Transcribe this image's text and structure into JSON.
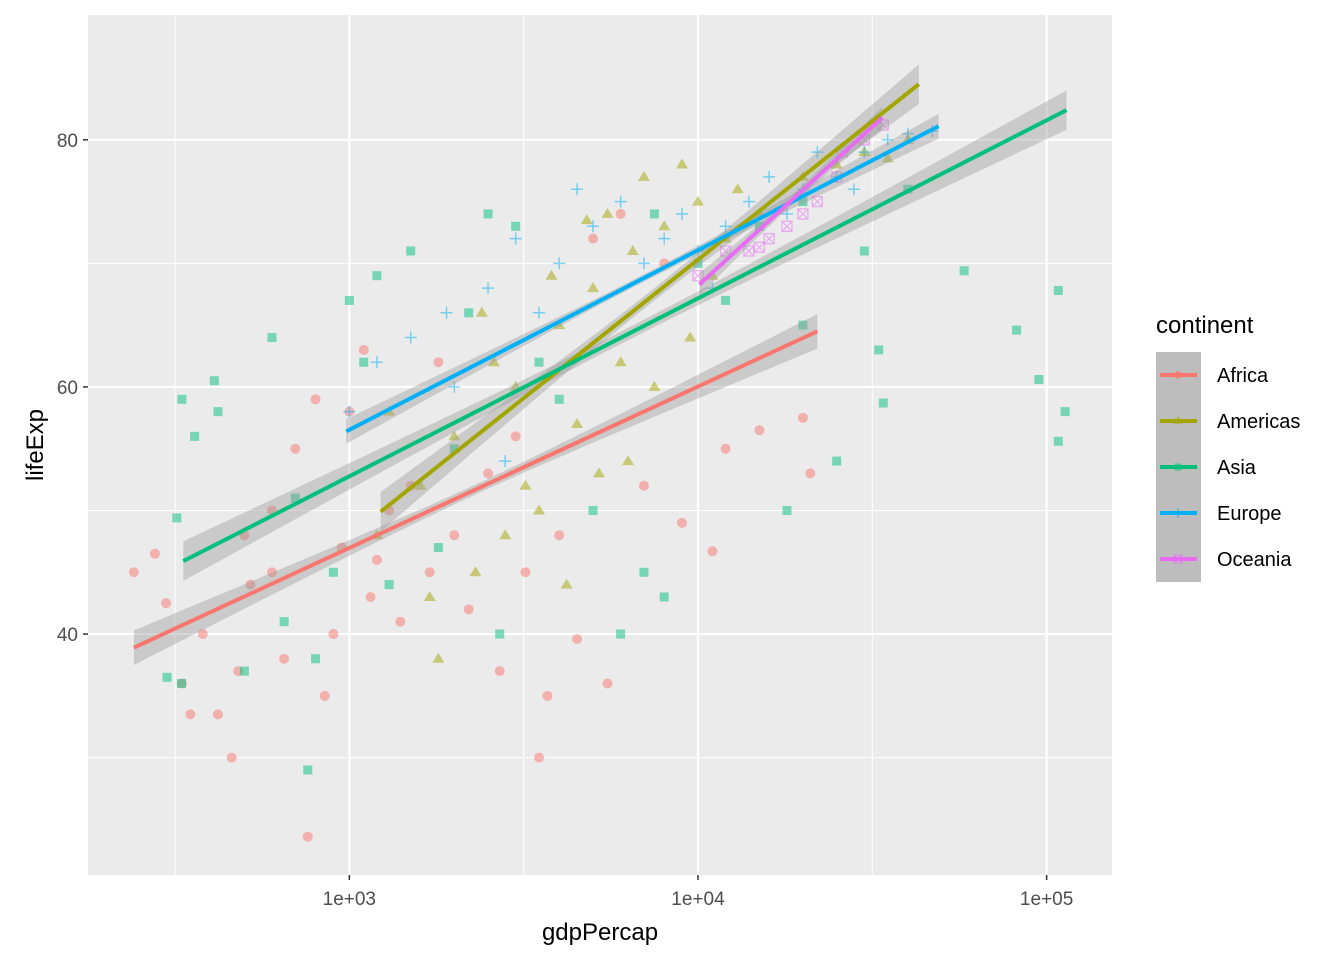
{
  "chart_data": {
    "type": "scatter",
    "xlabel": "gdpPercap",
    "ylabel": "lifeExp",
    "x_scale": "log10",
    "xlim": [
      178,
      154000
    ],
    "ylim": [
      20.5,
      90.1
    ],
    "x_ticks": [
      {
        "value": 1000,
        "label": "1e+03"
      },
      {
        "value": 10000,
        "label": "1e+04"
      },
      {
        "value": 100000,
        "label": "1e+05"
      }
    ],
    "y_ticks": [
      {
        "value": 40,
        "label": "40"
      },
      {
        "value": 60,
        "label": "60"
      },
      {
        "value": 80,
        "label": "80"
      }
    ],
    "x_minor": [
      316.2,
      3162,
      31623
    ],
    "y_minor": [
      30,
      50,
      70
    ],
    "grid": true,
    "legend": {
      "title": "continent",
      "placement": "right"
    },
    "series": [
      {
        "name": "Africa",
        "color": "#F8766D",
        "shape": "circle",
        "fit": {
          "from": [
            241,
            38.9
          ],
          "to": [
            22000,
            64.5
          ],
          "ci_halfwidth_ends": 1.4,
          "ci_halfwidth_mid": 0.4
        },
        "points": [
          [
            241,
            45
          ],
          [
            277,
            46.5
          ],
          [
            298,
            42.5
          ],
          [
            331,
            36
          ],
          [
            350,
            33.5
          ],
          [
            420,
            33.5
          ],
          [
            460,
            30
          ],
          [
            480,
            37
          ],
          [
            520,
            44
          ],
          [
            600,
            50
          ],
          [
            700,
            55
          ],
          [
            800,
            59
          ],
          [
            760,
            23.6
          ],
          [
            900,
            40
          ],
          [
            1000,
            58
          ],
          [
            1100,
            63
          ],
          [
            1200,
            46
          ],
          [
            1300,
            50
          ],
          [
            1500,
            52
          ],
          [
            1700,
            45
          ],
          [
            2000,
            48
          ],
          [
            2500,
            53
          ],
          [
            3000,
            56
          ],
          [
            3500,
            30
          ],
          [
            4000,
            48
          ],
          [
            5000,
            72
          ],
          [
            6000,
            74
          ],
          [
            7000,
            52
          ],
          [
            4500,
            39.6
          ],
          [
            5500,
            36
          ],
          [
            8000,
            70
          ],
          [
            9000,
            49
          ],
          [
            12000,
            55
          ],
          [
            15000,
            56.5
          ],
          [
            20000,
            57.5
          ],
          [
            21000,
            53
          ],
          [
            11000,
            46.7
          ],
          [
            3700,
            35
          ],
          [
            2700,
            37
          ],
          [
            1800,
            62
          ],
          [
            1400,
            41
          ],
          [
            850,
            35
          ],
          [
            600,
            45
          ],
          [
            500,
            48
          ],
          [
            380,
            40
          ],
          [
            650,
            38
          ],
          [
            950,
            47
          ],
          [
            1150,
            43
          ],
          [
            2200,
            42
          ],
          [
            3200,
            45
          ]
        ]
      },
      {
        "name": "Americas",
        "color": "#A3A500",
        "shape": "triangle",
        "fit": {
          "from": [
            1230,
            49.9
          ],
          "to": [
            43000,
            84.5
          ],
          "ci_halfwidth_ends": 1.6,
          "ci_halfwidth_mid": 0.5
        },
        "points": [
          [
            1200,
            48
          ],
          [
            1300,
            58
          ],
          [
            1600,
            52
          ],
          [
            1800,
            38
          ],
          [
            2000,
            56
          ],
          [
            2300,
            45
          ],
          [
            2600,
            62
          ],
          [
            3000,
            60
          ],
          [
            3500,
            50
          ],
          [
            4000,
            65
          ],
          [
            4500,
            57
          ],
          [
            5000,
            68
          ],
          [
            5500,
            74
          ],
          [
            6000,
            62
          ],
          [
            6500,
            71
          ],
          [
            7000,
            77
          ],
          [
            8000,
            73
          ],
          [
            9000,
            78
          ],
          [
            10000,
            75
          ],
          [
            12000,
            72
          ],
          [
            15000,
            74
          ],
          [
            20000,
            77
          ],
          [
            25000,
            78
          ],
          [
            30000,
            79
          ],
          [
            35000,
            78.5
          ],
          [
            40000,
            80
          ],
          [
            3200,
            52
          ],
          [
            2800,
            48
          ],
          [
            4200,
            44
          ],
          [
            5200,
            53
          ],
          [
            6300,
            54
          ],
          [
            7500,
            60
          ],
          [
            9500,
            64
          ],
          [
            11000,
            69
          ],
          [
            13000,
            76
          ],
          [
            1700,
            43
          ],
          [
            2400,
            66
          ],
          [
            3800,
            69
          ],
          [
            4800,
            73.5
          ]
        ]
      },
      {
        "name": "Asia",
        "color": "#00BF7D",
        "shape": "square",
        "fit": {
          "from": [
            334,
            45.9
          ],
          "to": [
            114000,
            82.4
          ],
          "ci_halfwidth_ends": 1.6,
          "ci_halfwidth_mid": 0.5
        },
        "points": [
          [
            330,
            36
          ],
          [
            331,
            59
          ],
          [
            360,
            56
          ],
          [
            410,
            60.5
          ],
          [
            420,
            58
          ],
          [
            500,
            37
          ],
          [
            600,
            64
          ],
          [
            700,
            51
          ],
          [
            760,
            29
          ],
          [
            800,
            38
          ],
          [
            900,
            45
          ],
          [
            1000,
            67
          ],
          [
            1100,
            62
          ],
          [
            1200,
            69
          ],
          [
            1500,
            71
          ],
          [
            2000,
            55
          ],
          [
            2500,
            74
          ],
          [
            3000,
            73
          ],
          [
            3500,
            62
          ],
          [
            4000,
            59
          ],
          [
            5000,
            50
          ],
          [
            6000,
            40
          ],
          [
            7000,
            45
          ],
          [
            8000,
            43
          ],
          [
            10000,
            70
          ],
          [
            12000,
            67
          ],
          [
            18000,
            50
          ],
          [
            20000,
            65
          ],
          [
            25000,
            54
          ],
          [
            30000,
            71
          ],
          [
            33000,
            63
          ],
          [
            34000,
            58.7
          ],
          [
            40000,
            76
          ],
          [
            58000,
            69.4
          ],
          [
            82000,
            64.6
          ],
          [
            95000,
            60.6
          ],
          [
            108000,
            67.8
          ],
          [
            113000,
            58
          ],
          [
            108000,
            55.6
          ],
          [
            20000,
            75
          ],
          [
            15000,
            73
          ],
          [
            7500,
            74
          ],
          [
            1800,
            47
          ],
          [
            1300,
            44
          ],
          [
            2200,
            66
          ],
          [
            650,
            41
          ],
          [
            2700,
            40
          ],
          [
            320,
            49.4
          ],
          [
            300,
            36.5
          ]
        ]
      },
      {
        "name": "Europe",
        "color": "#00B0F6",
        "shape": "plus",
        "fit": {
          "from": [
            980,
            56.4
          ],
          "to": [
            49000,
            81.1
          ],
          "ci_halfwidth_ends": 1.0,
          "ci_halfwidth_mid": 0.3
        },
        "points": [
          [
            1000,
            58
          ],
          [
            1200,
            62
          ],
          [
            1500,
            64
          ],
          [
            2000,
            60
          ],
          [
            2500,
            68
          ],
          [
            3000,
            72
          ],
          [
            3500,
            66
          ],
          [
            4000,
            70
          ],
          [
            4500,
            76
          ],
          [
            5000,
            73
          ],
          [
            6000,
            75
          ],
          [
            7000,
            70
          ],
          [
            8000,
            72
          ],
          [
            9000,
            74
          ],
          [
            10000,
            71
          ],
          [
            12000,
            73
          ],
          [
            14000,
            75
          ],
          [
            16000,
            77
          ],
          [
            18000,
            74
          ],
          [
            20000,
            76
          ],
          [
            25000,
            77
          ],
          [
            30000,
            79
          ],
          [
            35000,
            80
          ],
          [
            40000,
            80.5
          ],
          [
            47000,
            80.7
          ],
          [
            2800,
            54
          ],
          [
            1900,
            66
          ],
          [
            11000,
            68
          ],
          [
            22000,
            79
          ],
          [
            28000,
            76
          ]
        ]
      },
      {
        "name": "Oceania",
        "color": "#E76BF3",
        "shape": "square-cross",
        "fit": {
          "from": [
            10100,
            68.3
          ],
          "to": [
            33800,
            81.8
          ],
          "ci_halfwidth_ends": 0.9,
          "ci_halfwidth_mid": 0.4
        },
        "points": [
          [
            10000,
            69
          ],
          [
            12000,
            71
          ],
          [
            14000,
            71
          ],
          [
            16000,
            72
          ],
          [
            18000,
            73
          ],
          [
            20000,
            74
          ],
          [
            22000,
            75
          ],
          [
            25000,
            77
          ],
          [
            30000,
            80
          ],
          [
            34000,
            81.2
          ],
          [
            26000,
            79
          ],
          [
            15000,
            71.3
          ]
        ]
      }
    ]
  }
}
